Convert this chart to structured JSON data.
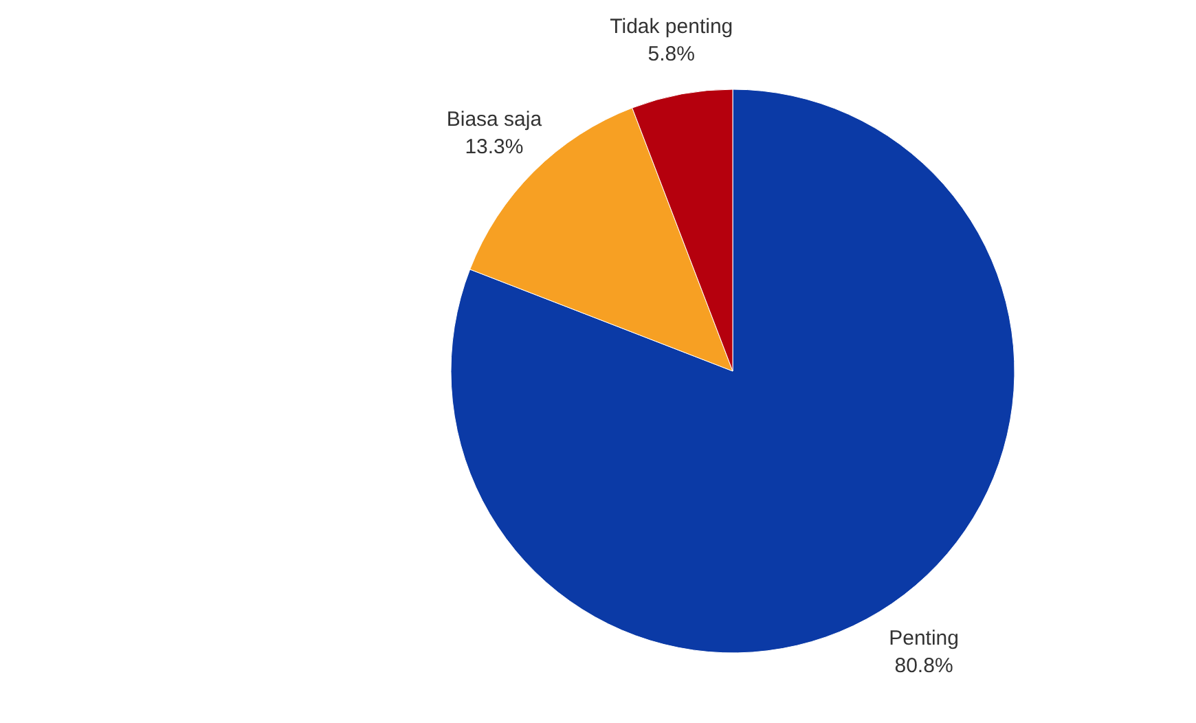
{
  "chart_data": {
    "type": "pie",
    "categories": [
      "Penting",
      "Biasa saja",
      "Tidak penting"
    ],
    "values": [
      80.8,
      13.3,
      5.8
    ],
    "colors": [
      "#0b3aa6",
      "#f7a023",
      "#b5000d"
    ],
    "value_labels": [
      "80.8%",
      "13.3%",
      "5.8%"
    ]
  }
}
